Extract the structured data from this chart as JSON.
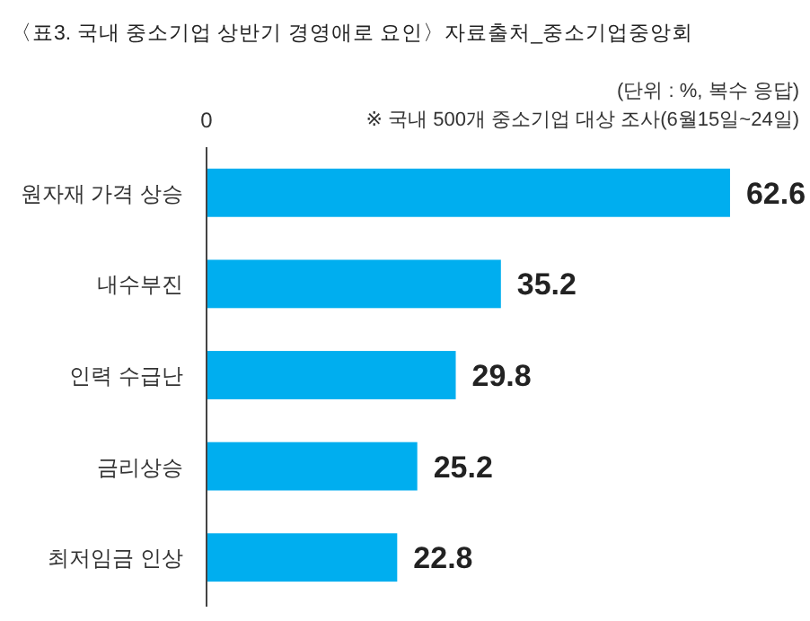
{
  "chart_data": {
    "type": "bar",
    "orientation": "horizontal",
    "title": "〈표3. 국내 중소기업 상반기 경영애로 요인〉자료출처_중소기업중앙회",
    "subtitle": "(단위 : %, 복수 응답)",
    "annotations": [
      "※ 국내 500개 중소기업 대상 조사(6월15일~24일)",
      "0"
    ],
    "categories": [
      "원자재 가격 상승",
      "내수부진",
      "인력 수급난",
      "금리상승",
      "최저임금 인상"
    ],
    "values": [
      62.6,
      35.2,
      29.8,
      25.2,
      22.8
    ],
    "color": "#00aeef",
    "data_labels": true
  }
}
